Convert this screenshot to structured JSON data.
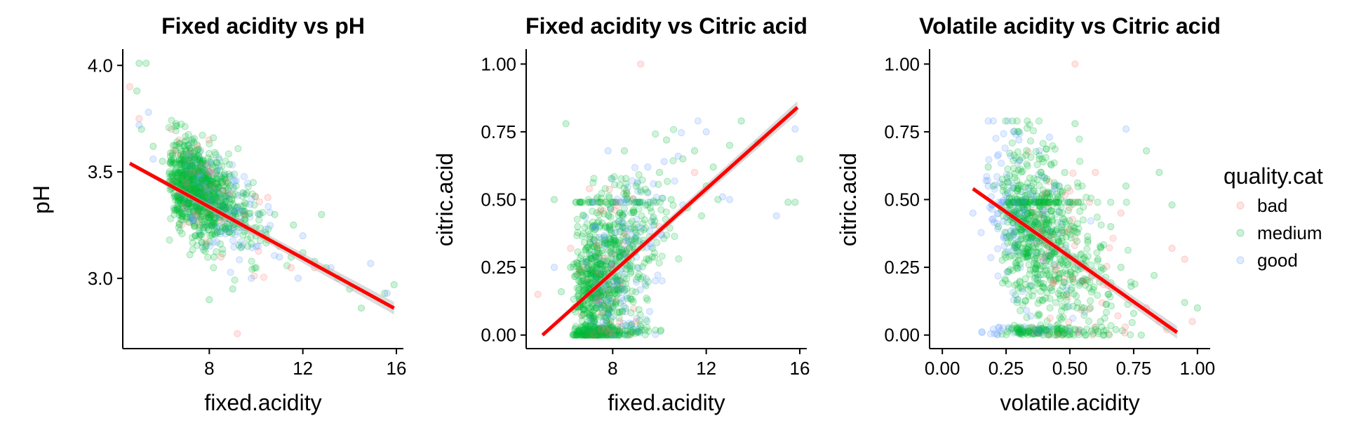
{
  "colors": {
    "bad": "#F8766D",
    "medium": "#00BA38",
    "good": "#619CFF",
    "fit_line": "#FF0000",
    "fit_band": "#BEBEBE"
  },
  "legend": {
    "title": "quality.cat",
    "items": [
      {
        "key": "bad",
        "label": "bad"
      },
      {
        "key": "medium",
        "label": "medium"
      },
      {
        "key": "good",
        "label": "good"
      }
    ]
  },
  "chart_data": [
    {
      "type": "scatter",
      "title": "Fixed acidity vs pH",
      "xlabel": "fixed.acidity",
      "ylabel": "pH",
      "xlim": [
        4.3,
        16.3
      ],
      "ylim": [
        2.67,
        4.07
      ],
      "xticks": [
        {
          "v": 8,
          "label": "8"
        },
        {
          "v": 12,
          "label": "12"
        },
        {
          "v": 16,
          "label": "16"
        }
      ],
      "yticks": [
        {
          "v": 3.0,
          "label": "3.0"
        },
        {
          "v": 3.5,
          "label": "3.5"
        },
        {
          "v": 4.0,
          "label": "4.0"
        }
      ],
      "fit_line": {
        "x": [
          4.6,
          15.9
        ],
        "y": [
          3.54,
          2.86
        ]
      },
      "point_sample_size": 1599,
      "series": [
        {
          "name": "bad",
          "points": [
            [
              4.6,
              3.9
            ],
            [
              5.0,
              3.75
            ],
            [
              7.5,
              3.62
            ],
            [
              8.0,
              3.5
            ],
            [
              9.2,
              2.74
            ],
            [
              10.5,
              3.38
            ],
            [
              9.5,
              3.3
            ],
            [
              7.0,
              3.45
            ],
            [
              11.5,
              3.05
            ],
            [
              8.5,
              3.1
            ],
            [
              6.5,
              3.6
            ],
            [
              12.5,
              3.05
            ]
          ]
        },
        {
          "name": "medium",
          "points": [
            [
              5.0,
              4.01
            ],
            [
              5.3,
              4.01
            ],
            [
              4.9,
              3.88
            ],
            [
              5.1,
              3.7
            ],
            [
              5.6,
              3.62
            ],
            [
              6.0,
              3.55
            ],
            [
              6.3,
              3.5
            ],
            [
              6.6,
              3.45
            ],
            [
              6.9,
              3.4
            ],
            [
              7.2,
              3.42
            ],
            [
              7.5,
              3.38
            ],
            [
              7.8,
              3.35
            ],
            [
              8.1,
              3.3
            ],
            [
              8.4,
              3.32
            ],
            [
              8.7,
              3.28
            ],
            [
              9.0,
              3.25
            ],
            [
              9.5,
              3.22
            ],
            [
              10.0,
              3.2
            ],
            [
              10.5,
              3.18
            ],
            [
              11.0,
              3.15
            ],
            [
              11.5,
              3.1
            ],
            [
              12.0,
              3.12
            ],
            [
              12.5,
              3.08
            ],
            [
              13.0,
              3.05
            ],
            [
              13.5,
              3.0
            ],
            [
              14.0,
              2.95
            ],
            [
              15.5,
              2.93
            ],
            [
              15.9,
              2.97
            ],
            [
              7.0,
              3.6
            ],
            [
              7.4,
              3.2
            ],
            [
              8.2,
              3.1
            ],
            [
              9.0,
              2.95
            ],
            [
              8.0,
              2.9
            ],
            [
              10.0,
              3.05
            ],
            [
              6.5,
              3.3
            ],
            [
              7.7,
              3.5
            ],
            [
              8.8,
              3.45
            ],
            [
              9.6,
              3.4
            ],
            [
              10.8,
              3.3
            ],
            [
              11.6,
              3.25
            ],
            [
              12.8,
              3.3
            ],
            [
              14.5,
              2.86
            ]
          ]
        },
        {
          "name": "good",
          "points": [
            [
              5.0,
              3.72
            ],
            [
              5.4,
              3.78
            ],
            [
              5.6,
              3.56
            ],
            [
              6.8,
              3.4
            ],
            [
              8.0,
              3.35
            ],
            [
              9.0,
              3.3
            ],
            [
              10.0,
              3.15
            ],
            [
              11.0,
              3.1
            ],
            [
              12.0,
              3.2
            ],
            [
              13.2,
              3.05
            ],
            [
              14.9,
              3.07
            ],
            [
              15.6,
              2.93
            ],
            [
              9.8,
              3.0
            ],
            [
              11.8,
              3.0
            ]
          ]
        }
      ]
    },
    {
      "type": "scatter",
      "title": "Fixed acidity vs Citric acid",
      "xlabel": "fixed.acidity",
      "ylabel": "citric.acid",
      "xlim": [
        4.3,
        16.3
      ],
      "ylim": [
        -0.05,
        1.05
      ],
      "xticks": [
        {
          "v": 8,
          "label": "8"
        },
        {
          "v": 12,
          "label": "12"
        },
        {
          "v": 16,
          "label": "16"
        }
      ],
      "yticks": [
        {
          "v": 0.0,
          "label": "0.00"
        },
        {
          "v": 0.25,
          "label": "0.25"
        },
        {
          "v": 0.5,
          "label": "0.50"
        },
        {
          "v": 0.75,
          "label": "0.75"
        },
        {
          "v": 1.0,
          "label": "1.00"
        }
      ],
      "fit_line": {
        "x": [
          5.0,
          15.9
        ],
        "y": [
          0.0,
          0.84
        ]
      },
      "point_sample_size": 1599,
      "series": [
        {
          "name": "bad",
          "points": [
            [
              9.2,
              1.0
            ],
            [
              4.8,
              0.15
            ],
            [
              7.0,
              0.54
            ],
            [
              8.3,
              0.05
            ],
            [
              9.0,
              0.05
            ],
            [
              11.5,
              0.6
            ],
            [
              7.5,
              0.02
            ],
            [
              6.2,
              0.32
            ],
            [
              8.0,
              0.25
            ],
            [
              10.0,
              0.4
            ]
          ]
        },
        {
          "name": "medium",
          "points": [
            [
              6.0,
              0.78
            ],
            [
              5.5,
              0.5
            ],
            [
              6.5,
              0.4
            ],
            [
              7.0,
              0.3
            ],
            [
              7.2,
              0.05
            ],
            [
              7.5,
              0.1
            ],
            [
              7.8,
              0.2
            ],
            [
              8.0,
              0.35
            ],
            [
              8.3,
              0.45
            ],
            [
              8.6,
              0.5
            ],
            [
              9.0,
              0.55
            ],
            [
              9.5,
              0.48
            ],
            [
              10.0,
              0.6
            ],
            [
              10.5,
              0.5
            ],
            [
              11.0,
              0.65
            ],
            [
              11.5,
              0.68
            ],
            [
              12.0,
              0.55
            ],
            [
              12.5,
              0.5
            ],
            [
              13.0,
              0.7
            ],
            [
              13.5,
              0.79
            ],
            [
              15.8,
              0.49
            ],
            [
              16.0,
              0.65
            ],
            [
              7.3,
              0.0
            ],
            [
              7.7,
              0.01
            ],
            [
              6.8,
              0.0
            ],
            [
              8.2,
              0.02
            ],
            [
              7.0,
              0.12
            ],
            [
              8.8,
              0.28
            ],
            [
              9.3,
              0.35
            ],
            [
              10.3,
              0.72
            ],
            [
              11.2,
              0.47
            ],
            [
              12.3,
              0.62
            ],
            [
              14.2,
              0.71
            ],
            [
              15.5,
              0.49
            ],
            [
              6.2,
              0.25
            ],
            [
              5.8,
              0.16
            ],
            [
              8.5,
              0.68
            ],
            [
              9.8,
              0.42
            ],
            [
              11.8,
              0.44
            ]
          ]
        },
        {
          "name": "good",
          "points": [
            [
              5.5,
              0.25
            ],
            [
              7.2,
              0.4
            ],
            [
              7.8,
              0.68
            ],
            [
              8.5,
              0.5
            ],
            [
              9.5,
              0.62
            ],
            [
              10.2,
              0.64
            ],
            [
              11.0,
              0.48
            ],
            [
              12.0,
              0.75
            ],
            [
              12.7,
              0.51
            ],
            [
              13.0,
              0.5
            ],
            [
              15.0,
              0.44
            ],
            [
              15.8,
              0.76
            ],
            [
              7.6,
              0.05
            ],
            [
              10.8,
              0.66
            ]
          ]
        }
      ]
    },
    {
      "type": "scatter",
      "title": "Volatile acidity vs Citric acid",
      "xlabel": "volatile.acidity",
      "ylabel": "citric.acid",
      "xlim": [
        -0.05,
        1.05
      ],
      "ylim": [
        -0.05,
        1.05
      ],
      "xticks": [
        {
          "v": 0.0,
          "label": "0.00"
        },
        {
          "v": 0.25,
          "label": "0.25"
        },
        {
          "v": 0.5,
          "label": "0.50"
        },
        {
          "v": 0.75,
          "label": "0.75"
        },
        {
          "v": 1.0,
          "label": "1.00"
        }
      ],
      "yticks": [
        {
          "v": 0.0,
          "label": "0.00"
        },
        {
          "v": 0.25,
          "label": "0.25"
        },
        {
          "v": 0.5,
          "label": "0.50"
        },
        {
          "v": 0.75,
          "label": "0.75"
        },
        {
          "v": 1.0,
          "label": "1.00"
        }
      ],
      "fit_line": {
        "x": [
          0.12,
          0.92
        ],
        "y": [
          0.54,
          0.01
        ]
      },
      "point_sample_size": 1599,
      "series": [
        {
          "name": "bad",
          "points": [
            [
              0.52,
              1.0
            ],
            [
              0.6,
              0.6
            ],
            [
              0.7,
              0.45
            ],
            [
              0.85,
              0.05
            ],
            [
              0.98,
              0.05
            ],
            [
              0.9,
              0.32
            ],
            [
              0.8,
              0.1
            ],
            [
              0.55,
              0.2
            ],
            [
              0.95,
              0.28
            ],
            [
              0.88,
              0.02
            ]
          ]
        },
        {
          "name": "medium",
          "points": [
            [
              0.18,
              0.62
            ],
            [
              0.2,
              0.55
            ],
            [
              0.25,
              0.48
            ],
            [
              0.3,
              0.75
            ],
            [
              0.35,
              0.4
            ],
            [
              0.4,
              0.49
            ],
            [
              0.45,
              0.3
            ],
            [
              0.5,
              0.49
            ],
            [
              0.55,
              0.2
            ],
            [
              0.58,
              0.1
            ],
            [
              0.6,
              0.02
            ],
            [
              0.62,
              0.05
            ],
            [
              0.65,
              0.15
            ],
            [
              0.7,
              0.25
            ],
            [
              0.75,
              0.08
            ],
            [
              0.78,
              0.0
            ],
            [
              0.8,
              0.68
            ],
            [
              0.85,
              0.6
            ],
            [
              0.9,
              0.48
            ],
            [
              0.95,
              0.12
            ],
            [
              1.0,
              0.1
            ],
            [
              0.52,
              0.78
            ],
            [
              0.48,
              0.6
            ],
            [
              0.38,
              0.65
            ],
            [
              0.42,
              0.22
            ],
            [
              0.57,
              0.35
            ],
            [
              0.66,
              0.4
            ],
            [
              0.72,
              0.55
            ],
            [
              0.68,
              0.02
            ],
            [
              0.63,
              0.0
            ],
            [
              0.44,
              0.0
            ],
            [
              0.56,
              0.0
            ],
            [
              0.33,
              0.3
            ],
            [
              0.22,
              0.4
            ],
            [
              0.47,
              0.45
            ],
            [
              0.53,
              0.12
            ],
            [
              0.61,
              0.28
            ],
            [
              0.74,
              0.18
            ],
            [
              0.83,
              0.22
            ],
            [
              0.88,
              0.03
            ]
          ]
        },
        {
          "name": "good",
          "points": [
            [
              0.12,
              0.45
            ],
            [
              0.18,
              0.55
            ],
            [
              0.24,
              0.42
            ],
            [
              0.28,
              0.75
            ],
            [
              0.3,
              0.72
            ],
            [
              0.32,
              0.5
            ],
            [
              0.35,
              0.35
            ],
            [
              0.38,
              0.68
            ],
            [
              0.4,
              0.46
            ],
            [
              0.42,
              0.73
            ],
            [
              0.33,
              0.09
            ],
            [
              0.45,
              0.32
            ],
            [
              0.72,
              0.76
            ],
            [
              0.28,
              0.38
            ]
          ]
        }
      ]
    }
  ]
}
